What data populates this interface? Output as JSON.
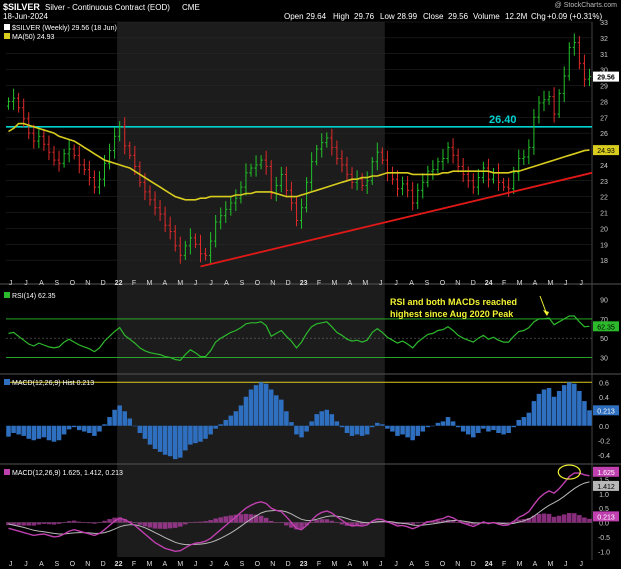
{
  "header": {
    "symbol": "$SILVER",
    "description": "Silver - Continuous Contract (EOD)",
    "exchange": "CME",
    "date": "18-Jun-2024",
    "watermark": "@ StockCharts.com",
    "quote": {
      "open_label": "Open",
      "open": "29.64",
      "high_label": "High",
      "high": "29.76",
      "low_label": "Low",
      "low": "28.99",
      "close_label": "Close",
      "close": "29.56",
      "volume_label": "Volume",
      "volume": "12.2M",
      "change_label": "Chg",
      "change": "+0.09 (+0.31%)"
    }
  },
  "colors": {
    "background": "#000000",
    "band_a": "#000000",
    "band_b": "#1c1c1c",
    "up_bar": "#22c22a",
    "down_bar": "#e12a2a",
    "ma_line": "#d8cc1e",
    "support_line": "#00d2d2",
    "trend_line": "#e01818",
    "rsi_line": "#2cba2c",
    "rsi_band": "#2cba2c",
    "macd_hist": "#2f6fbf",
    "macd_line": "#c040b0",
    "signal_line": "#b8b8b8",
    "annotation": "#f4f434",
    "grid": "#2a2a2a"
  },
  "chart_data": [
    {
      "type": "candlestick",
      "title": "$SILVER Silver - Continuous Contract (EOD) CME",
      "legend": [
        {
          "label": "$SILVER (Weekly) 29.56 (18 Jun)",
          "color": "#ffffff"
        },
        {
          "label": "MA(50) 24.93",
          "color": "#d8cc1e"
        }
      ],
      "ylim": [
        17,
        33
      ],
      "y_ticks": [
        18,
        19,
        20,
        21,
        22,
        23,
        24,
        25,
        26,
        27,
        28,
        29,
        30,
        31,
        32,
        33
      ],
      "x_ticks": [
        "J",
        "J",
        "A",
        "S",
        "O",
        "N",
        "D",
        "22",
        "F",
        "M",
        "A",
        "M",
        "J",
        "J",
        "A",
        "S",
        "O",
        "N",
        "D",
        "23",
        "F",
        "M",
        "A",
        "M",
        "J",
        "J",
        "A",
        "S",
        "O",
        "N",
        "D",
        "24",
        "F",
        "M",
        "A",
        "M",
        "J",
        "J"
      ],
      "last_price_label": "29.56",
      "ma_price_label": "24.93",
      "weekly_close": [
        28.0,
        28.2,
        27.6,
        26.9,
        26.0,
        25.5,
        25.8,
        25.3,
        24.8,
        24.3,
        24.1,
        24.7,
        25.0,
        24.6,
        24.0,
        23.7,
        23.2,
        22.6,
        23.1,
        24.1,
        24.9,
        25.8,
        26.4,
        25.2,
        24.6,
        23.9,
        22.9,
        22.3,
        21.8,
        21.3,
        20.9,
        20.2,
        19.8,
        18.9,
        18.3,
        18.9,
        19.4,
        19.0,
        18.4,
        18.3,
        19.2,
        20.4,
        20.8,
        21.2,
        21.6,
        21.9,
        22.6,
        23.5,
        23.8,
        24.0,
        24.3,
        23.9,
        22.2,
        22.7,
        23.4,
        22.4,
        21.6,
        20.5,
        21.3,
        22.9,
        24.2,
        25.0,
        25.4,
        25.7,
        25.1,
        24.4,
        24.0,
        23.4,
        22.9,
        23.1,
        22.7,
        23.0,
        24.2,
        24.8,
        24.3,
        23.5,
        23.1,
        22.5,
        22.8,
        22.4,
        21.6,
        22.4,
        22.9,
        23.6,
        23.7,
        24.2,
        24.4,
        25.1,
        24.6,
        23.9,
        23.4,
        23.0,
        22.6,
        23.2,
        23.8,
        23.1,
        23.5,
        22.9,
        22.6,
        22.5,
        23.5,
        24.4,
        24.5,
        25.1,
        27.0,
        27.9,
        28.1,
        28.3,
        27.2,
        28.5,
        29.6,
        31.4,
        31.7,
        30.4,
        29.4,
        29.56
      ],
      "ma50": [
        26.1,
        26.3,
        26.6,
        26.6,
        26.5,
        26.4,
        26.3,
        26.2,
        26.1,
        26.0,
        25.8,
        25.7,
        25.6,
        25.5,
        25.3,
        25.1,
        24.9,
        24.7,
        24.5,
        24.3,
        24.2,
        24.1,
        24.0,
        23.9,
        23.8,
        23.6,
        23.4,
        23.2,
        23.0,
        22.8,
        22.6,
        22.4,
        22.2,
        22.0,
        21.9,
        21.8,
        21.8,
        21.8,
        21.9,
        21.9,
        22.0,
        22.0,
        22.0,
        22.0,
        22.0,
        22.1,
        22.1,
        22.2,
        22.2,
        22.3,
        22.3,
        22.3,
        22.3,
        22.2,
        22.1,
        22.0,
        22.0,
        22.0,
        22.1,
        22.2,
        22.3,
        22.4,
        22.5,
        22.6,
        22.7,
        22.8,
        22.9,
        23.0,
        23.1,
        23.1,
        23.2,
        23.2,
        23.3,
        23.3,
        23.4,
        23.5,
        23.5,
        23.5,
        23.5,
        23.5,
        23.4,
        23.4,
        23.4,
        23.4,
        23.4,
        23.4,
        23.5,
        23.5,
        23.6,
        23.6,
        23.6,
        23.6,
        23.6,
        23.6,
        23.6,
        23.6,
        23.5,
        23.5,
        23.5,
        23.5,
        23.6,
        23.6,
        23.7,
        23.8,
        23.9,
        24.0,
        24.1,
        24.2,
        24.3,
        24.4,
        24.5,
        24.6,
        24.7,
        24.8,
        24.9,
        24.93
      ],
      "support_level": 26.4,
      "support_label": "26.40",
      "trendline": {
        "from": {
          "week": 38,
          "price": 17.6
        },
        "to": {
          "week": 118,
          "price": 23.5
        }
      }
    },
    {
      "type": "line",
      "legend": [
        {
          "label": "RSI(14) 62.35",
          "color": "#2cba2c"
        }
      ],
      "ylim": [
        15,
        100
      ],
      "y_ticks": [
        90,
        70,
        50,
        30
      ],
      "levels": [
        70,
        50,
        30
      ],
      "last_value_label": "62.35",
      "annotation": "RSI and both MACDs reached highest since Aug 2020 Peak",
      "rsi": [
        55,
        56,
        52,
        48,
        44,
        42,
        45,
        43,
        41,
        40,
        41,
        46,
        49,
        46,
        43,
        41,
        39,
        36,
        40,
        47,
        52,
        57,
        61,
        53,
        49,
        45,
        40,
        37,
        35,
        34,
        33,
        31,
        30,
        28,
        27,
        33,
        38,
        35,
        31,
        31,
        37,
        46,
        50,
        53,
        56,
        58,
        61,
        65,
        66,
        66,
        67,
        63,
        52,
        55,
        58,
        52,
        47,
        40,
        46,
        55,
        62,
        65,
        66,
        67,
        62,
        56,
        53,
        49,
        47,
        48,
        46,
        48,
        56,
        60,
        56,
        51,
        48,
        45,
        47,
        44,
        40,
        46,
        50,
        54,
        55,
        58,
        59,
        62,
        58,
        53,
        50,
        48,
        46,
        50,
        53,
        49,
        51,
        48,
        46,
        46,
        52,
        57,
        58,
        61,
        67,
        70,
        70,
        71,
        64,
        67,
        70,
        73,
        73,
        67,
        62,
        62.35
      ]
    },
    {
      "type": "bar",
      "legend": [
        {
          "label": "MACD(12,26,9) Hist 0.213",
          "color": "#2f6fbf"
        }
      ],
      "ylim": [
        -0.5,
        0.7
      ],
      "y_ticks": [
        0.6,
        0.4,
        0.2,
        0.0,
        -0.2,
        -0.4
      ],
      "last_value_label": "0.213",
      "histogram": [
        -0.15,
        -0.1,
        -0.12,
        -0.14,
        -0.18,
        -0.2,
        -0.18,
        -0.16,
        -0.2,
        -0.22,
        -0.2,
        -0.12,
        -0.05,
        -0.02,
        -0.06,
        -0.08,
        -0.1,
        -0.14,
        -0.08,
        0.02,
        0.12,
        0.22,
        0.28,
        0.2,
        0.1,
        0.0,
        -0.1,
        -0.18,
        -0.26,
        -0.32,
        -0.36,
        -0.4,
        -0.42,
        -0.46,
        -0.44,
        -0.34,
        -0.26,
        -0.24,
        -0.22,
        -0.18,
        -0.12,
        -0.04,
        0.02,
        0.08,
        0.14,
        0.2,
        0.28,
        0.4,
        0.5,
        0.56,
        0.6,
        0.58,
        0.5,
        0.42,
        0.36,
        0.2,
        0.05,
        -0.12,
        -0.16,
        -0.08,
        0.06,
        0.16,
        0.2,
        0.22,
        0.16,
        0.06,
        -0.02,
        -0.1,
        -0.14,
        -0.12,
        -0.14,
        -0.12,
        -0.02,
        0.04,
        0.02,
        -0.04,
        -0.08,
        -0.14,
        -0.12,
        -0.16,
        -0.2,
        -0.14,
        -0.08,
        -0.02,
        0.0,
        0.04,
        0.06,
        0.12,
        0.06,
        -0.02,
        -0.08,
        -0.12,
        -0.16,
        -0.1,
        -0.04,
        -0.08,
        -0.06,
        -0.1,
        -0.12,
        -0.1,
        -0.02,
        0.08,
        0.12,
        0.18,
        0.34,
        0.44,
        0.5,
        0.52,
        0.4,
        0.48,
        0.56,
        0.6,
        0.58,
        0.48,
        0.34,
        0.213
      ]
    },
    {
      "type": "line",
      "legend": [
        {
          "label": "MACD(12,26,9) 1.625, 1.412, 0.213",
          "color": "#c040b0"
        }
      ],
      "ylim": [
        -1.2,
        2.0
      ],
      "y_ticks": [
        1.5,
        1.0,
        0.5,
        0.0,
        -0.5,
        -1.0
      ],
      "macd_label": "1.625",
      "signal_label": "1.412",
      "hist_label": "0.213",
      "macd": [
        -0.2,
        -0.25,
        -0.3,
        -0.35,
        -0.4,
        -0.45,
        -0.42,
        -0.4,
        -0.45,
        -0.5,
        -0.48,
        -0.4,
        -0.3,
        -0.25,
        -0.3,
        -0.35,
        -0.4,
        -0.45,
        -0.38,
        -0.25,
        -0.1,
        0.05,
        0.15,
        0.1,
        0.0,
        -0.1,
        -0.25,
        -0.4,
        -0.55,
        -0.7,
        -0.8,
        -0.9,
        -0.95,
        -1.0,
        -0.98,
        -0.88,
        -0.78,
        -0.72,
        -0.7,
        -0.65,
        -0.55,
        -0.4,
        -0.25,
        -0.1,
        0.05,
        0.2,
        0.35,
        0.5,
        0.6,
        0.68,
        0.72,
        0.66,
        0.5,
        0.42,
        0.38,
        0.2,
        0.0,
        -0.2,
        -0.25,
        -0.1,
        0.08,
        0.25,
        0.35,
        0.4,
        0.33,
        0.2,
        0.08,
        -0.05,
        -0.12,
        -0.1,
        -0.12,
        -0.08,
        0.05,
        0.12,
        0.1,
        0.02,
        -0.05,
        -0.12,
        -0.1,
        -0.15,
        -0.22,
        -0.15,
        -0.06,
        0.02,
        0.05,
        0.1,
        0.14,
        0.22,
        0.16,
        0.06,
        -0.02,
        -0.08,
        -0.14,
        -0.06,
        0.02,
        -0.04,
        0.0,
        -0.06,
        -0.1,
        -0.08,
        0.04,
        0.18,
        0.26,
        0.38,
        0.62,
        0.85,
        1.0,
        1.1,
        1.02,
        1.18,
        1.38,
        1.6,
        1.72,
        1.72,
        1.66,
        1.625
      ],
      "signal": [
        -0.05,
        -0.09,
        -0.13,
        -0.17,
        -0.22,
        -0.27,
        -0.3,
        -0.32,
        -0.35,
        -0.38,
        -0.4,
        -0.4,
        -0.38,
        -0.36,
        -0.35,
        -0.35,
        -0.36,
        -0.38,
        -0.38,
        -0.35,
        -0.3,
        -0.23,
        -0.15,
        -0.1,
        -0.08,
        -0.08,
        -0.12,
        -0.18,
        -0.26,
        -0.35,
        -0.44,
        -0.53,
        -0.61,
        -0.69,
        -0.74,
        -0.77,
        -0.77,
        -0.76,
        -0.75,
        -0.73,
        -0.69,
        -0.63,
        -0.55,
        -0.46,
        -0.36,
        -0.25,
        -0.13,
        0.0,
        0.12,
        0.23,
        0.33,
        0.39,
        0.41,
        0.42,
        0.41,
        0.37,
        0.3,
        0.2,
        0.11,
        0.07,
        0.07,
        0.11,
        0.16,
        0.21,
        0.23,
        0.22,
        0.19,
        0.14,
        0.08,
        0.05,
        0.01,
        -0.01,
        0.0,
        0.02,
        0.04,
        0.04,
        0.02,
        -0.01,
        -0.03,
        -0.05,
        -0.09,
        -0.1,
        -0.09,
        -0.07,
        -0.05,
        -0.02,
        0.01,
        0.05,
        0.07,
        0.07,
        0.05,
        0.02,
        -0.01,
        -0.02,
        -0.01,
        -0.02,
        -0.01,
        -0.02,
        -0.04,
        -0.05,
        -0.03,
        0.01,
        0.06,
        0.12,
        0.22,
        0.35,
        0.48,
        0.6,
        0.69,
        0.79,
        0.91,
        1.05,
        1.18,
        1.29,
        1.37,
        1.412
      ]
    }
  ]
}
